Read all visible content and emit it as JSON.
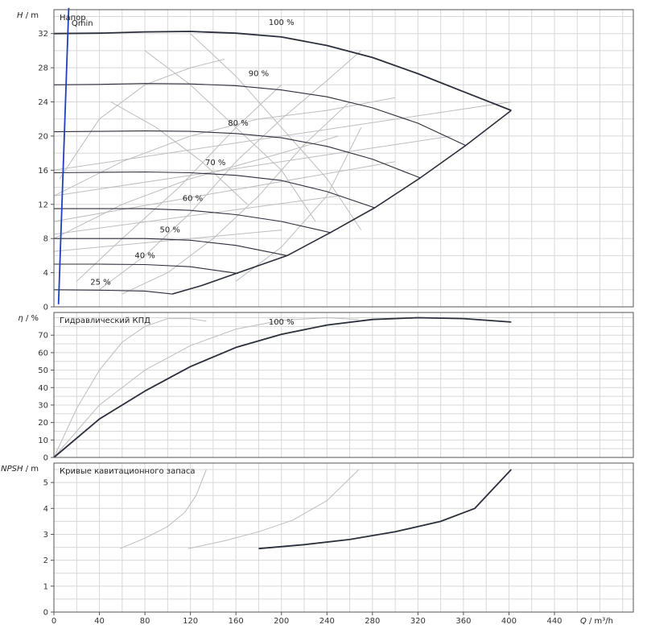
{
  "chart_data": {
    "type": "line",
    "x_axis": {
      "label_symbol": "Q",
      "label_unit": " / m³/h",
      "ticks": [
        0,
        40,
        80,
        120,
        160,
        200,
        240,
        280,
        320,
        360,
        400,
        440
      ]
    },
    "colors": {
      "grid": "#d8d8d8",
      "main": "#2b2f3b",
      "light": "#bdbdbd",
      "qmin": "#1f3fbf",
      "frame": "#555555"
    },
    "panels": [
      {
        "id": "head",
        "title": "Напор",
        "y_symbol": "H",
        "y_unit": " / m",
        "y_ticks": [
          0,
          4,
          8,
          12,
          16,
          20,
          24,
          28,
          32
        ],
        "ylim": [
          0,
          34.8
        ],
        "qmin_label": "Qmin",
        "qmin_line": {
          "x": [
            4,
            13
          ],
          "y": [
            0.3,
            35
          ]
        },
        "speed_curves": [
          {
            "label": "100 %",
            "label_at": [
              200,
              33.3
            ],
            "x": [
              0,
              40,
              80,
              120,
              160,
              200,
              240,
              280,
              320,
              360,
              402
            ],
            "y": [
              32,
              32.05,
              32.2,
              32.25,
              32.05,
              31.6,
              30.6,
              29.2,
              27.3,
              25.2,
              23
            ]
          },
          {
            "label": "90 %",
            "label_at": [
              180,
              27.3
            ],
            "x": [
              0,
              40,
              80,
              120,
              160,
              200,
              240,
              280,
              320,
              362
            ],
            "y": [
              26,
              26.05,
              26.15,
              26.1,
              25.9,
              25.4,
              24.6,
              23.3,
              21.5,
              18.9
            ]
          },
          {
            "label": "80 %",
            "label_at": [
              162,
              21.5
            ],
            "x": [
              0,
              40,
              80,
              120,
              160,
              200,
              240,
              280,
              322
            ],
            "y": [
              20.5,
              20.55,
              20.6,
              20.55,
              20.3,
              19.8,
              18.8,
              17.3,
              15.1
            ]
          },
          {
            "label": "70 %",
            "label_at": [
              142,
              16.9
            ],
            "x": [
              0,
              40,
              80,
              120,
              160,
              200,
              240,
              282
            ],
            "y": [
              15.7,
              15.75,
              15.8,
              15.7,
              15.4,
              14.8,
              13.5,
              11.6
            ]
          },
          {
            "label": "60 %",
            "label_at": [
              122,
              12.7
            ],
            "x": [
              0,
              40,
              80,
              120,
              160,
              200,
              243
            ],
            "y": [
              11.5,
              11.5,
              11.5,
              11.3,
              10.8,
              10,
              8.7
            ]
          },
          {
            "label": "50 %",
            "label_at": [
              102,
              9.0
            ],
            "x": [
              0,
              40,
              80,
              120,
              160,
              205
            ],
            "y": [
              8,
              8,
              8,
              7.8,
              7.2,
              6
            ]
          },
          {
            "label": "40 %",
            "label_at": [
              80,
              6.0
            ],
            "x": [
              0,
              40,
              80,
              120,
              162
            ],
            "y": [
              5,
              5,
              4.95,
              4.7,
              3.9
            ]
          },
          {
            "label": "25 %",
            "label_at": [
              41,
              2.9
            ],
            "x": [
              0,
              40,
              80,
              104
            ],
            "y": [
              2,
              1.95,
              1.85,
              1.5
            ]
          }
        ],
        "envelope": {
          "x": [
            104,
            130,
            160,
            205,
            243,
            282,
            322,
            362,
            402
          ],
          "y": [
            1.5,
            2.5,
            3.9,
            6,
            8.7,
            11.6,
            15.1,
            18.9,
            23
          ]
        },
        "system_curves": [
          {
            "x": [
              0,
              402
            ],
            "y": [
              16,
              24
            ]
          },
          {
            "x": [
              0,
              350
            ],
            "y": [
              13,
              20
            ]
          },
          {
            "x": [
              0,
              300
            ],
            "y": [
              10,
              17
            ]
          },
          {
            "x": [
              0,
              250
            ],
            "y": [
              8.5,
              13
            ]
          },
          {
            "x": [
              0,
              200
            ],
            "y": [
              6.5,
              9
            ]
          }
        ],
        "iso_curves": [
          {
            "x": [
              0,
              60,
              120,
              160,
              200,
              250
            ],
            "y": [
              8,
              12,
              15,
              16.5,
              18,
              20
            ]
          },
          {
            "x": [
              0,
              60,
              120,
              180,
              240,
              300
            ],
            "y": [
              13,
              17,
              20,
              22,
              23,
              24.5
            ]
          },
          {
            "x": [
              20,
              60,
              110,
              160,
              200
            ],
            "y": [
              3,
              8,
              14,
              21,
              26
            ]
          },
          {
            "x": [
              40,
              80,
              120,
              160,
              200,
              240,
              270
            ],
            "y": [
              2,
              6,
              11,
              17,
              22,
              26.5,
              30
            ]
          },
          {
            "x": [
              60,
              100,
              140,
              180,
              220,
              260
            ],
            "y": [
              1.5,
              4,
              8,
              13,
              19,
              24
            ]
          },
          {
            "x": [
              5,
              40,
              80,
              120,
              150
            ],
            "y": [
              15,
              22,
              26,
              28,
              29
            ]
          },
          {
            "x": [
              160,
              200,
              240,
              270
            ],
            "y": [
              3,
              7,
              13,
              21
            ]
          },
          {
            "x": [
              80,
              120,
              160,
              200,
              230
            ],
            "y": [
              30,
              26,
              21,
              16,
              10
            ]
          },
          {
            "x": [
              120,
              160,
              200,
              240,
              270
            ],
            "y": [
              32,
              27,
              21,
              15,
              9
            ]
          },
          {
            "x": [
              50,
              90,
              130,
              170
            ],
            "y": [
              24,
              21,
              17,
              12
            ]
          }
        ]
      },
      {
        "id": "eff",
        "title": "Гидравлический КПД",
        "y_symbol": "η",
        "y_unit": " / %",
        "y_ticks": [
          0,
          10,
          20,
          30,
          40,
          50,
          60,
          70
        ],
        "ylim": [
          0,
          83
        ],
        "curves": [
          {
            "label": "100 %",
            "label_at": [
              200,
              77.5
            ],
            "style": "main",
            "x": [
              0,
              40,
              80,
              120,
              160,
              200,
              240,
              280,
              320,
              360,
              402
            ],
            "y": [
              0,
              22,
              38,
              52,
              63,
              70.5,
              75.8,
              79,
              80,
              79.5,
              77.5
            ]
          },
          {
            "label": "",
            "style": "light",
            "x": [
              0,
              40,
              80,
              120,
              160,
              200,
              240,
              268
            ],
            "y": [
              0,
              30,
              50,
              64,
              73.5,
              78.5,
              80,
              79
            ]
          },
          {
            "label": "",
            "style": "light",
            "x": [
              0,
              20,
              40,
              60,
              80,
              100,
              120,
              134
            ],
            "y": [
              0,
              28,
              50,
              66,
              75,
              79.5,
              79.5,
              78
            ]
          }
        ]
      },
      {
        "id": "npsh",
        "title": "Кривые кавитационного запаса",
        "y_symbol": "NPSH",
        "y_unit": " / m",
        "y_ticks": [
          0,
          1,
          2,
          3,
          4,
          5
        ],
        "ylim": [
          0,
          5.75
        ],
        "curves": [
          {
            "style": "main",
            "x": [
              180,
              220,
              260,
              300,
              340,
              370,
              402
            ],
            "y": [
              2.45,
              2.6,
              2.8,
              3.1,
              3.5,
              4,
              5.5
            ]
          },
          {
            "style": "light",
            "x": [
              118,
              150,
              180,
              210,
              240,
              268
            ],
            "y": [
              2.45,
              2.75,
              3.1,
              3.55,
              4.3,
              5.5
            ]
          },
          {
            "style": "light",
            "x": [
              58,
              80,
              100,
              115,
              125,
              134
            ],
            "y": [
              2.45,
              2.85,
              3.3,
              3.85,
              4.5,
              5.5
            ]
          }
        ]
      }
    ]
  }
}
